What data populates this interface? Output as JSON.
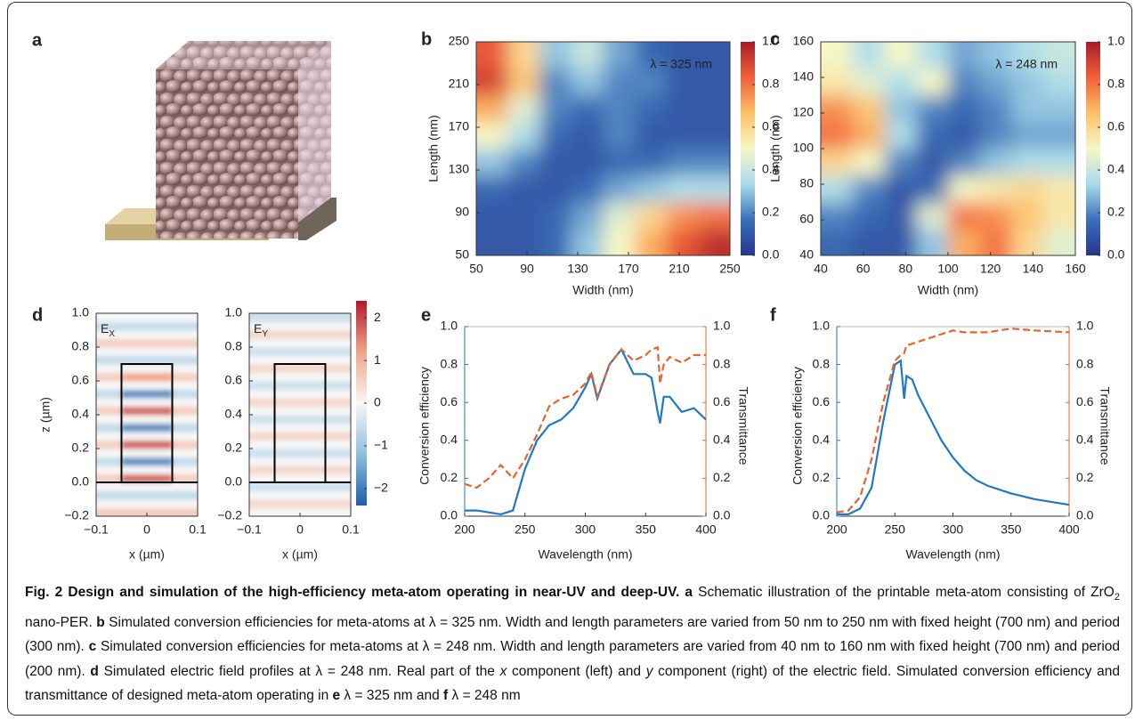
{
  "illustration": {
    "label": "a"
  },
  "chart_data": [
    {
      "type": "heatmap",
      "panel": "b",
      "xlabel": "Width (nm)",
      "ylabel": "Length (nm)",
      "annotation": "λ = 325 nm",
      "xlim": [
        50,
        250
      ],
      "ylim": [
        50,
        250
      ],
      "xticks": [
        50,
        90,
        130,
        170,
        210,
        250
      ],
      "yticks": [
        50,
        90,
        130,
        170,
        210,
        250
      ],
      "clim": [
        0,
        1
      ],
      "cticks": [
        {
          "value": 0,
          "label": "0.0"
        },
        0.2,
        0.4,
        0.6,
        0.8,
        {
          "value": 1,
          "label": "1.0"
        }
      ],
      "colormap": [
        "#2a3590",
        "#3b6fb6",
        "#a9dbec",
        "#f6f7c6",
        "#fdc06a",
        "#f0603a",
        "#a81c2a"
      ],
      "z": [
        [
          0.1,
          0.1,
          0.15,
          0.3,
          0.5,
          0.7,
          0.85,
          0.95
        ],
        [
          0.1,
          0.1,
          0.15,
          0.25,
          0.45,
          0.6,
          0.75,
          0.8
        ],
        [
          0.15,
          0.1,
          0.1,
          0.15,
          0.25,
          0.3,
          0.35,
          0.35
        ],
        [
          0.3,
          0.2,
          0.1,
          0.1,
          0.15,
          0.15,
          0.2,
          0.2
        ],
        [
          0.5,
          0.35,
          0.15,
          0.1,
          0.2,
          0.1,
          0.1,
          0.1
        ],
        [
          0.7,
          0.45,
          0.2,
          0.15,
          0.2,
          0.15,
          0.1,
          0.1
        ],
        [
          0.9,
          0.65,
          0.2,
          0.3,
          0.2,
          0.2,
          0.1,
          0.1
        ],
        [
          0.85,
          0.6,
          0.3,
          0.4,
          0.25,
          0.15,
          0.1,
          0.1
        ]
      ]
    },
    {
      "type": "heatmap",
      "panel": "c",
      "xlabel": "Width (nm)",
      "ylabel": "Length (nm)",
      "annotation": "λ = 248 nm",
      "xlim": [
        40,
        160
      ],
      "ylim": [
        40,
        160
      ],
      "xticks": [
        40,
        60,
        80,
        100,
        120,
        140,
        160
      ],
      "yticks": [
        40,
        60,
        80,
        100,
        120,
        140,
        160
      ],
      "clim": [
        0,
        1
      ],
      "cticks": [
        {
          "value": 0,
          "label": "0.0"
        },
        0.2,
        0.4,
        0.6,
        0.8,
        {
          "value": 1,
          "label": "1.0"
        }
      ],
      "colormap": [
        "#2a3590",
        "#3b6fb6",
        "#a9dbec",
        "#f6f7c6",
        "#fdc06a",
        "#f0603a",
        "#a81c2a"
      ],
      "z": [
        [
          0.15,
          0.1,
          0.1,
          0.3,
          0.7,
          0.8,
          0.6,
          0.45
        ],
        [
          0.2,
          0.15,
          0.1,
          0.45,
          0.8,
          0.75,
          0.65,
          0.55
        ],
        [
          0.35,
          0.2,
          0.1,
          0.15,
          0.5,
          0.55,
          0.6,
          0.55
        ],
        [
          0.6,
          0.5,
          0.2,
          0.1,
          0.2,
          0.3,
          0.35,
          0.35
        ],
        [
          0.8,
          0.7,
          0.35,
          0.15,
          0.1,
          0.2,
          0.25,
          0.25
        ],
        [
          0.75,
          0.65,
          0.3,
          0.2,
          0.15,
          0.2,
          0.3,
          0.3
        ],
        [
          0.55,
          0.45,
          0.35,
          0.5,
          0.2,
          0.25,
          0.3,
          0.35
        ],
        [
          0.5,
          0.35,
          0.5,
          0.35,
          0.25,
          0.3,
          0.35,
          0.4
        ]
      ]
    },
    {
      "type": "field",
      "panel": "d",
      "xlabel": "x (µm)",
      "ylabel": "z (µm)",
      "xlim": [
        -0.1,
        0.1
      ],
      "ylim": [
        -0.2,
        1.0
      ],
      "xticks": [
        {
          "value": -0.1,
          "label": "−0.1"
        },
        0,
        0.1
      ],
      "yticks": [
        {
          "value": -0.2,
          "label": "−0.2"
        },
        {
          "value": 0,
          "label": "0.0"
        },
        0.2,
        0.4,
        0.6,
        0.8,
        {
          "value": 1,
          "label": "1.0"
        }
      ],
      "clim": [
        -2.4,
        2.4
      ],
      "cticks": [
        {
          "value": -2,
          "label": "−2"
        },
        {
          "value": -1,
          "label": "−1"
        },
        0,
        1,
        2
      ],
      "colormap": [
        "#1d5fa6",
        "#8fbfdc",
        "#f7f7f7",
        "#f0a58a",
        "#b2182b"
      ],
      "structure": {
        "x": [
          -0.05,
          0.05
        ],
        "z": [
          0,
          0.7
        ]
      },
      "substrate_top": 0,
      "panels": [
        {
          "annotation": {
            "base": "E",
            "sub": "X"
          },
          "z": [
            [
              0.6,
              0.6,
              0.6,
              0.6
            ],
            [
              0,
              0,
              0,
              0
            ],
            [
              -0.6,
              -0.6,
              -0.6,
              -0.6
            ],
            [
              0,
              0,
              0,
              0
            ],
            [
              0.6,
              1.8,
              1.8,
              0.6
            ],
            [
              0,
              0,
              0,
              0
            ],
            [
              -0.6,
              -1.8,
              -1.8,
              -0.6
            ],
            [
              0,
              0,
              0,
              0
            ],
            [
              0.6,
              1.8,
              1.8,
              0.6
            ],
            [
              0,
              0,
              0,
              0
            ],
            [
              -0.6,
              -1.8,
              -1.8,
              -0.6
            ],
            [
              0,
              0,
              0,
              0
            ],
            [
              0.6,
              1.8,
              1.8,
              0.6
            ],
            [
              0,
              0,
              0,
              0
            ],
            [
              -0.6,
              -1.8,
              -1.8,
              -0.6
            ],
            [
              0,
              0,
              0,
              0
            ],
            [
              0.6,
              1.2,
              1.2,
              0.6
            ],
            [
              0,
              0,
              0,
              0
            ],
            [
              -0.6,
              -0.6,
              -0.6,
              -0.6
            ],
            [
              0,
              0,
              0,
              0
            ],
            [
              0.6,
              0.6,
              0.6,
              0.6
            ],
            [
              0,
              0,
              0,
              0
            ],
            [
              -0.6,
              -0.6,
              -0.6,
              -0.6
            ],
            [
              0,
              0,
              0,
              0
            ]
          ]
        },
        {
          "annotation": {
            "base": "E",
            "sub": "Y"
          },
          "z": [
            [
              0,
              0,
              0,
              0
            ],
            [
              0.5,
              0.5,
              0.5,
              0.5
            ],
            [
              0,
              0,
              0,
              0
            ],
            [
              -0.5,
              -0.5,
              -0.5,
              -0.5
            ],
            [
              0,
              0,
              0,
              0
            ],
            [
              0.5,
              0.5,
              0.5,
              0.5
            ],
            [
              0,
              0,
              0,
              0
            ],
            [
              -0.5,
              -0.5,
              -0.5,
              -0.5
            ],
            [
              0,
              0,
              0,
              0
            ],
            [
              0.5,
              0.5,
              0.5,
              0.5
            ],
            [
              0,
              0,
              0,
              0
            ],
            [
              -0.5,
              -0.5,
              -0.5,
              -0.5
            ],
            [
              0,
              0,
              0,
              0
            ],
            [
              0.5,
              0.5,
              0.5,
              0.5
            ],
            [
              0,
              0,
              0,
              0
            ],
            [
              -0.5,
              -0.5,
              -0.5,
              -0.5
            ],
            [
              0,
              0,
              0,
              0
            ],
            [
              0.5,
              0.5,
              0.5,
              0.5
            ],
            [
              0,
              0,
              0,
              0
            ],
            [
              -0.5,
              -0.5,
              -0.5,
              -0.5
            ],
            [
              0,
              0,
              0,
              0
            ],
            [
              0.5,
              0.5,
              0.5,
              0.5
            ],
            [
              0,
              0,
              0,
              0
            ],
            [
              -0.5,
              -0.5,
              -0.5,
              -0.5
            ]
          ]
        }
      ]
    },
    {
      "type": "line",
      "panel": "e",
      "xlabel": "Wavelength (nm)",
      "xlim": [
        200,
        400
      ],
      "xticks": [
        200,
        250,
        300,
        350,
        400
      ],
      "ylim": [
        0,
        1
      ],
      "yticks": [
        {
          "value": 0,
          "label": "0.0"
        },
        0.2,
        0.4,
        0.6,
        0.8,
        {
          "value": 1,
          "label": "1.0"
        }
      ],
      "y2lim": [
        0,
        1
      ],
      "y2ticks": [
        {
          "value": 0,
          "label": "0.0"
        },
        0.2,
        0.4,
        0.6,
        0.8,
        {
          "value": 1,
          "label": "1.0"
        }
      ],
      "x": [
        200,
        210,
        220,
        230,
        240,
        250,
        260,
        270,
        280,
        290,
        300,
        305,
        310,
        320,
        330,
        340,
        350,
        355,
        360,
        362,
        365,
        370,
        380,
        390,
        400
      ],
      "series": [
        {
          "name": "Conversion efficiency",
          "color": "#1f78c8",
          "axis": "y",
          "values": [
            0.03,
            0.03,
            0.02,
            0.01,
            0.03,
            0.25,
            0.4,
            0.48,
            0.51,
            0.57,
            0.68,
            0.75,
            0.62,
            0.8,
            0.88,
            0.75,
            0.75,
            0.73,
            0.55,
            0.49,
            0.63,
            0.63,
            0.55,
            0.57,
            0.51
          ]
        },
        {
          "name": "Transmittance",
          "color": "#e8632b",
          "axis": "y2",
          "dashed": true,
          "values": [
            0.17,
            0.15,
            0.2,
            0.27,
            0.2,
            0.3,
            0.43,
            0.58,
            0.62,
            0.64,
            0.7,
            0.76,
            0.63,
            0.8,
            0.88,
            0.82,
            0.85,
            0.88,
            0.89,
            0.7,
            0.8,
            0.84,
            0.81,
            0.85,
            0.85
          ]
        }
      ]
    },
    {
      "type": "line",
      "panel": "f",
      "xlabel": "Wavelength (nm)",
      "xlim": [
        200,
        400
      ],
      "xticks": [
        200,
        250,
        300,
        350,
        400
      ],
      "ylim": [
        0,
        1
      ],
      "yticks": [
        {
          "value": 0,
          "label": "0.0"
        },
        0.2,
        0.4,
        0.6,
        0.8,
        {
          "value": 1,
          "label": "1.0"
        }
      ],
      "y2lim": [
        0,
        1
      ],
      "y2ticks": [
        {
          "value": 0,
          "label": "0.0"
        },
        0.2,
        0.4,
        0.6,
        0.8,
        {
          "value": 1,
          "label": "1.0"
        }
      ],
      "x": [
        200,
        210,
        220,
        230,
        240,
        250,
        255,
        258,
        260,
        265,
        270,
        280,
        290,
        300,
        310,
        320,
        330,
        350,
        370,
        400
      ],
      "series": [
        {
          "name": "Conversion efficiency",
          "color": "#1f78c8",
          "axis": "y",
          "values": [
            0.01,
            0.01,
            0.04,
            0.15,
            0.5,
            0.8,
            0.82,
            0.62,
            0.74,
            0.72,
            0.64,
            0.52,
            0.4,
            0.31,
            0.24,
            0.19,
            0.16,
            0.12,
            0.09,
            0.06
          ]
        },
        {
          "name": "Transmittance",
          "color": "#e8632b",
          "axis": "y2",
          "dashed": true,
          "values": [
            0.02,
            0.03,
            0.1,
            0.3,
            0.6,
            0.82,
            0.85,
            0.86,
            0.9,
            0.91,
            0.92,
            0.94,
            0.96,
            0.98,
            0.97,
            0.97,
            0.97,
            0.99,
            0.98,
            0.97
          ]
        }
      ]
    }
  ],
  "caption": {
    "segments": [
      {
        "style": "bold",
        "text": "Fig. 2 Design and simulation of the high-efficiency meta-atom operating in near-UV and deep-UV."
      },
      {
        "style": "bold",
        "text": " a"
      },
      {
        "style": "normal",
        "text": " Schematic illustration of the printable meta-atom consisting of ZrO"
      },
      {
        "style": "sub",
        "text": "2"
      },
      {
        "style": "normal",
        "text": " nano-PER. "
      },
      {
        "style": "bold",
        "text": "b"
      },
      {
        "style": "normal",
        "text": " Simulated conversion efficiencies for meta-atoms at λ = 325 nm. Width and length parameters are varied from 50 nm to 250 nm with fixed height (700 nm) and period (300 nm). "
      },
      {
        "style": "bold",
        "text": "c"
      },
      {
        "style": "normal",
        "text": " Simulated conversion efficiencies for meta-atoms at λ = 248 nm. Width and length parameters are varied from 40 nm to 160 nm with fixed height (700 nm) and period (200 nm). "
      },
      {
        "style": "bold",
        "text": "d"
      },
      {
        "style": "normal",
        "text": " Simulated electric field profiles at λ = 248 nm. Real part of the "
      },
      {
        "style": "italic",
        "text": "x"
      },
      {
        "style": "normal",
        "text": " component (left) and "
      },
      {
        "style": "italic",
        "text": "y"
      },
      {
        "style": "normal",
        "text": " component (right) of the electric field. Simulated conversion efficiency and transmittance of designed meta-atom operating in "
      },
      {
        "style": "bold",
        "text": "e"
      },
      {
        "style": "normal",
        "text": " λ = 325 nm and "
      },
      {
        "style": "bold",
        "text": "f"
      },
      {
        "style": "normal",
        "text": " λ = 248 nm"
      }
    ]
  }
}
